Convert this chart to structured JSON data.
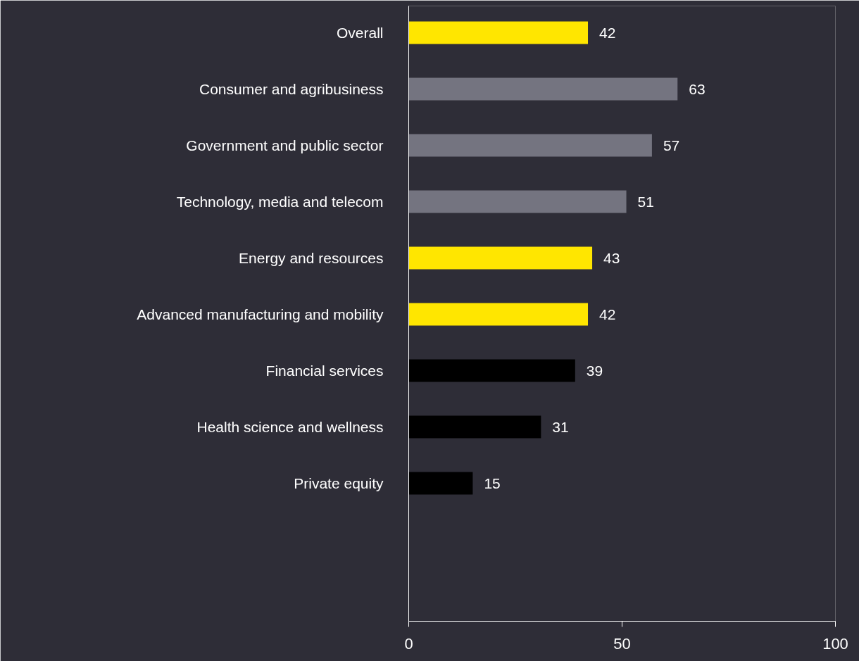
{
  "chart_data": {
    "type": "bar",
    "orientation": "horizontal",
    "categories": [
      "Overall",
      "Consumer and agribusiness",
      "Government and public sector",
      "Technology, media and telecom",
      "Energy and resources",
      "Advanced manufacturing and mobility",
      "Financial services",
      "Health science and wellness",
      "Private equity"
    ],
    "values": [
      42,
      63,
      57,
      51,
      43,
      42,
      39,
      31,
      15
    ],
    "colors": [
      "#ffe600",
      "#747480",
      "#747480",
      "#747480",
      "#ffe600",
      "#ffe600",
      "#000000",
      "#000000",
      "#000000"
    ],
    "xlim": [
      0,
      100
    ],
    "xticks": [
      0,
      50,
      100
    ],
    "grid": false,
    "data_labels": true
  }
}
